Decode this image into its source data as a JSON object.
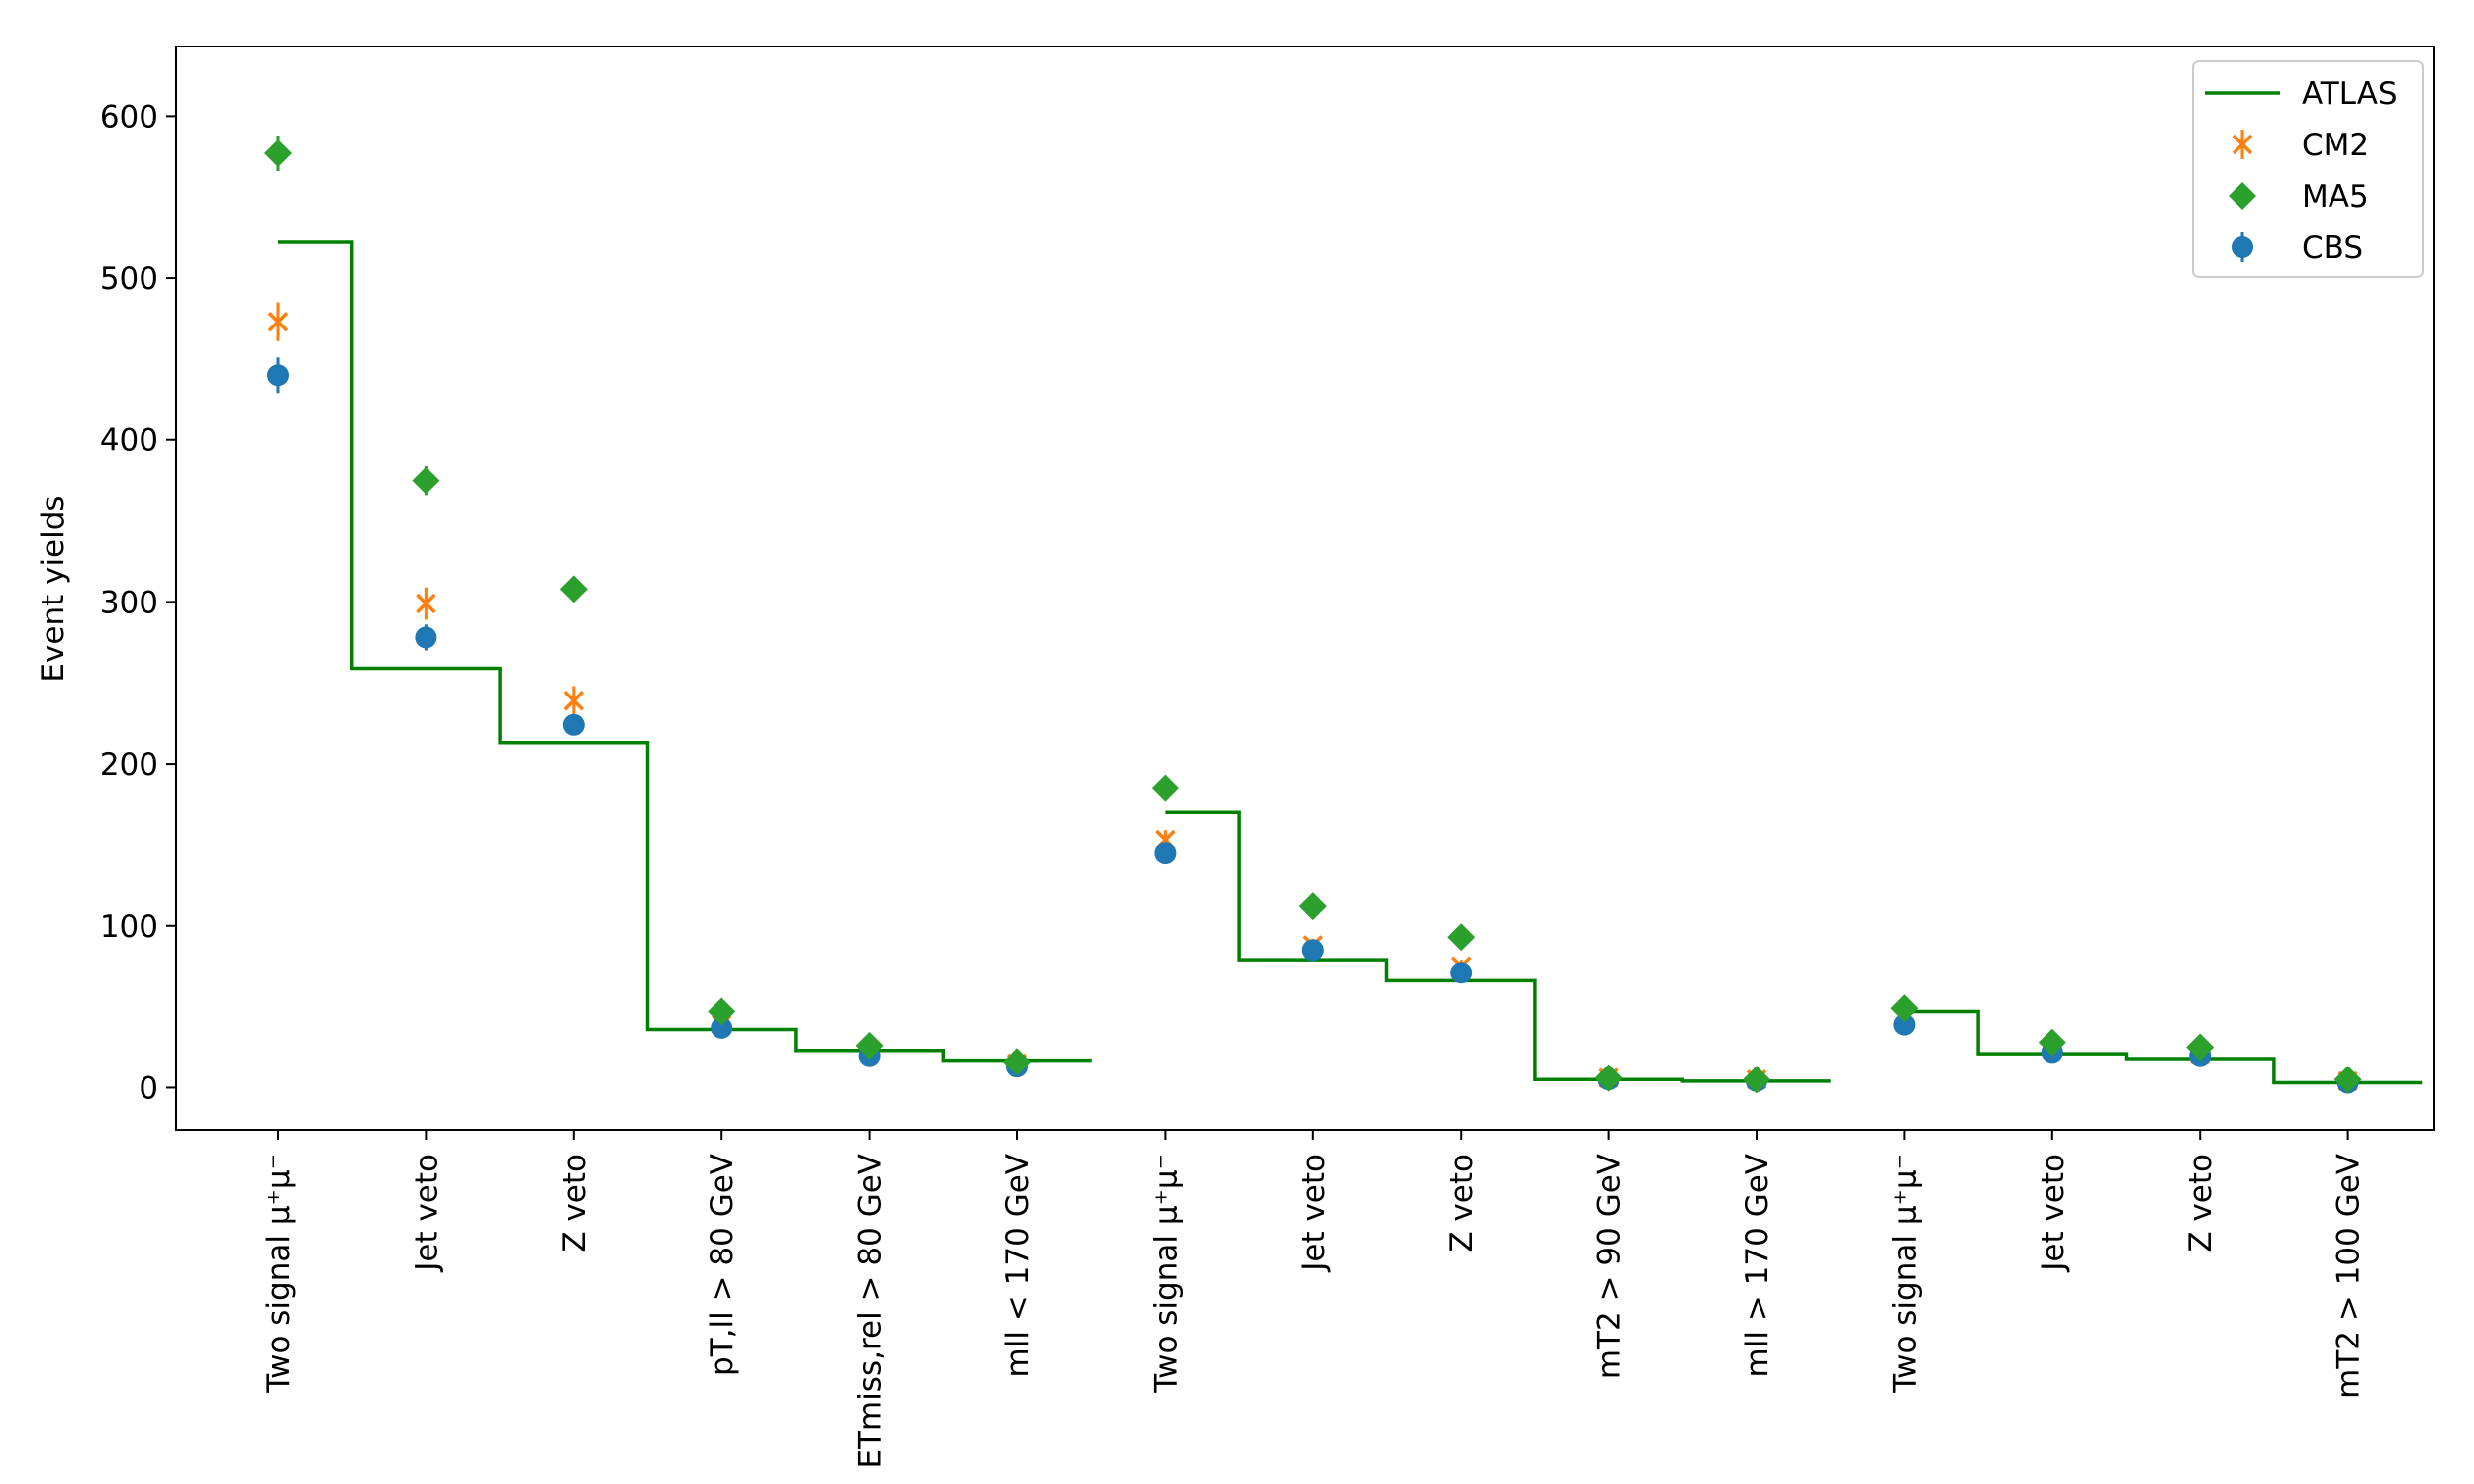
{
  "chart_data": {
    "type": "scatter",
    "title": "",
    "xlabel": "",
    "ylabel": "Event yields",
    "ylim": [
      -26,
      643
    ],
    "yticks": [
      0,
      100,
      200,
      300,
      400,
      500,
      600
    ],
    "categories": [
      {
        "text": "Two signal μ⁺μ⁻"
      },
      {
        "text": "Jet veto"
      },
      {
        "text": "Z veto"
      },
      {
        "text": "pT,ll > 80 GeV"
      },
      {
        "text": "ETmiss,rel > 80 GeV"
      },
      {
        "text": "mll < 170 GeV"
      },
      {
        "text": "Two signal μ⁺μ⁻"
      },
      {
        "text": "Jet veto"
      },
      {
        "text": "Z veto"
      },
      {
        "text": "mT2 > 90 GeV"
      },
      {
        "text": "mll > 170 GeV"
      },
      {
        "text": "Two signal μ⁺μ⁻"
      },
      {
        "text": "Jet veto"
      },
      {
        "text": "Z veto"
      },
      {
        "text": "mT2 > 100 GeV"
      }
    ],
    "groups": [
      [
        0,
        5
      ],
      [
        6,
        10
      ],
      [
        11,
        14
      ]
    ],
    "series": [
      {
        "name": "ATLAS",
        "style": "step",
        "color": "#008000",
        "values": [
          522,
          259,
          213,
          36,
          23,
          17,
          170,
          79,
          66,
          5,
          4,
          47,
          21,
          18,
          3
        ]
      },
      {
        "name": "CM2",
        "style": "x-errorbar",
        "color": "#ff7f0e",
        "values": [
          473,
          299,
          239,
          39,
          23,
          15,
          153,
          88,
          75,
          6,
          5,
          43,
          25,
          21,
          4
        ],
        "errors": [
          12,
          10,
          9,
          3,
          2,
          2,
          6,
          4,
          4,
          1,
          1,
          3,
          2,
          2,
          1
        ]
      },
      {
        "name": "MA5",
        "style": "diamond",
        "color": "#2ca02c",
        "values": [
          577,
          375,
          308,
          47,
          26,
          16,
          185,
          112,
          93,
          6,
          5,
          49,
          28,
          25,
          5
        ],
        "errors": [
          11,
          9,
          6,
          2,
          2,
          2,
          4,
          3,
          3,
          1,
          1,
          2,
          2,
          2,
          1
        ]
      },
      {
        "name": "CBS",
        "style": "circle-errorbar",
        "color": "#1f77b4",
        "values": [
          440,
          278,
          224,
          37,
          20,
          13,
          145,
          85,
          71,
          5,
          4,
          39,
          22,
          20,
          3
        ],
        "errors": [
          11,
          8,
          6,
          2,
          2,
          2,
          5,
          4,
          4,
          1,
          1,
          3,
          2,
          2,
          1
        ]
      }
    ],
    "legend": {
      "position": "top-right",
      "entries": [
        "ATLAS",
        "CM2",
        "MA5",
        "CBS"
      ]
    }
  }
}
